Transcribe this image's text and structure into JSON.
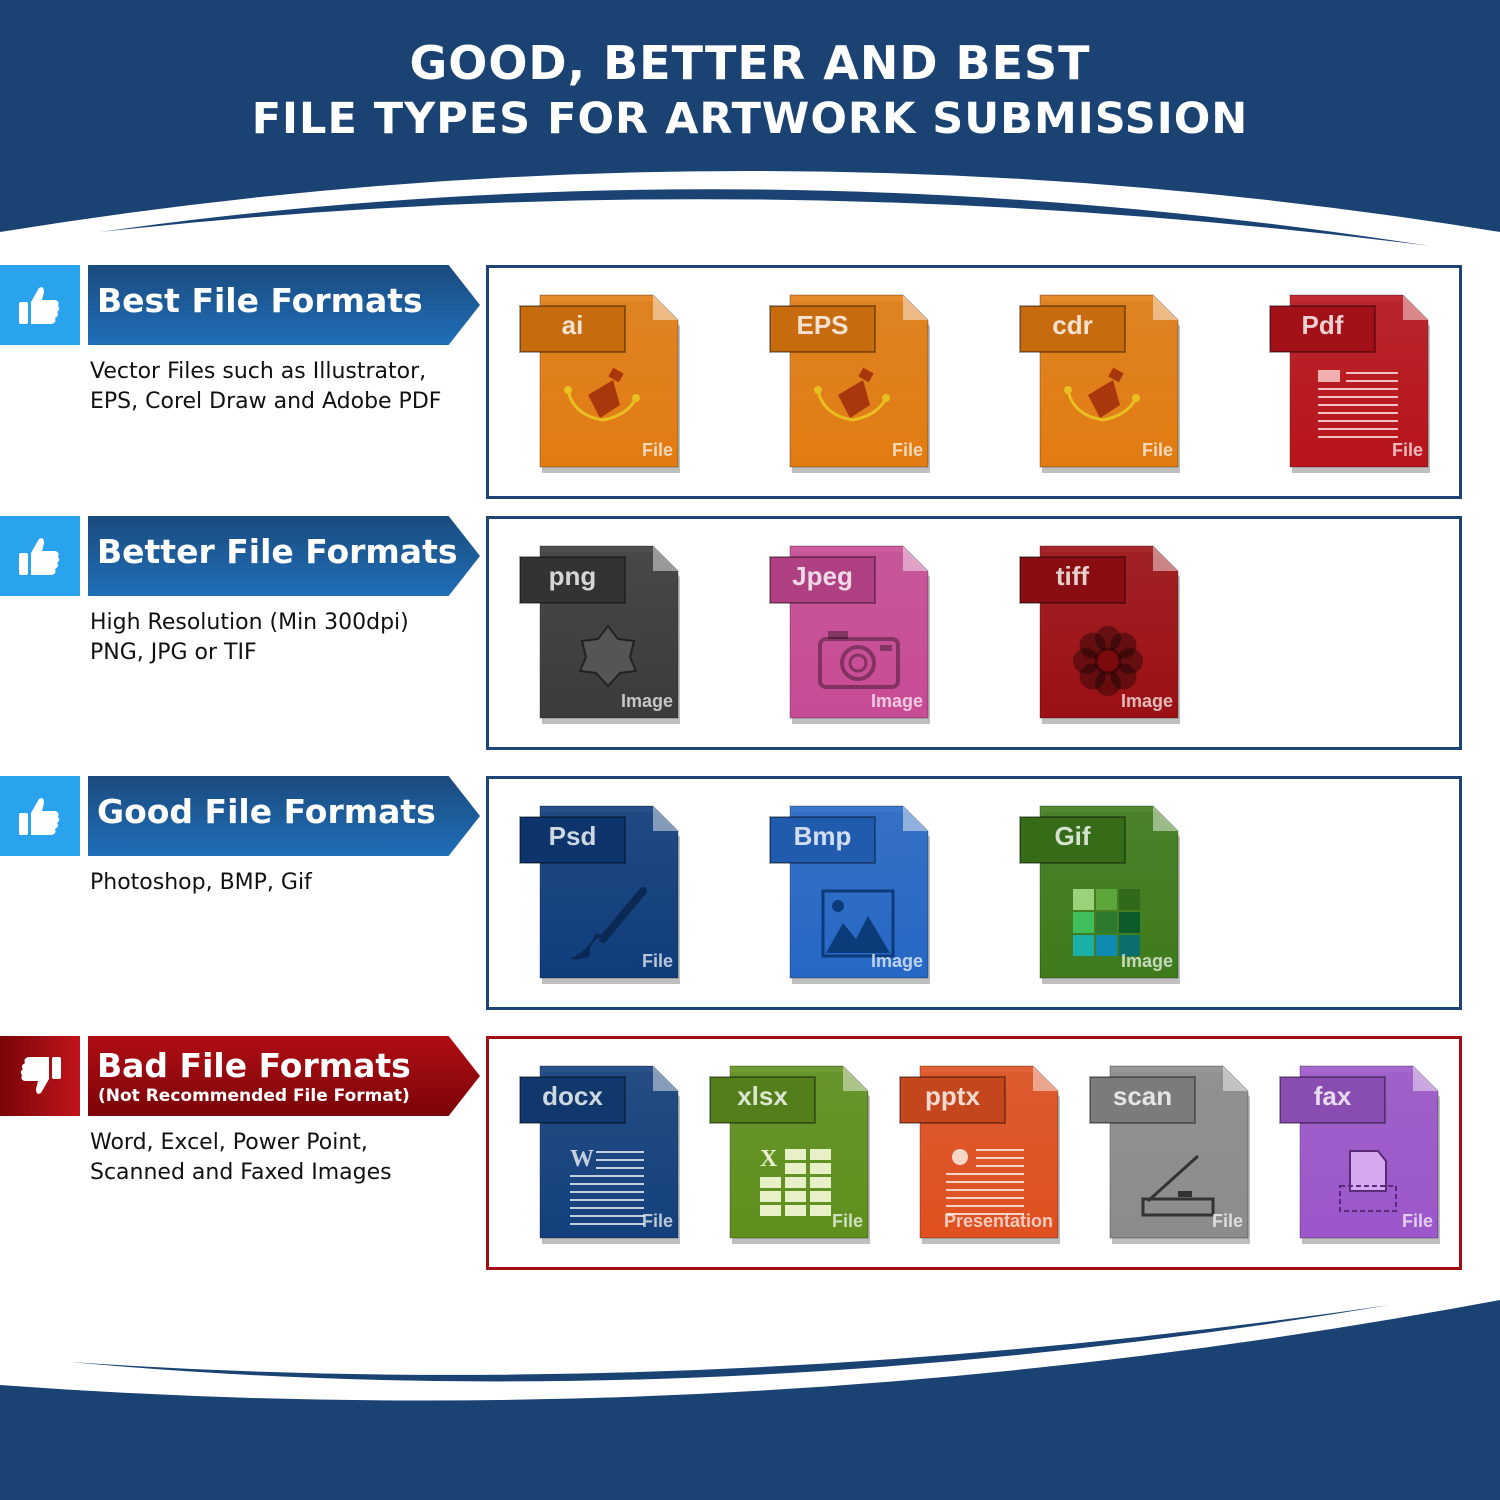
{
  "header": {
    "title_line1": "GOOD, BETTER AND BEST",
    "title_line2": "FILE TYPES FOR ARTWORK SUBMISSION"
  },
  "colors": {
    "navy": "#1a4373",
    "blue_accent": "#2a9be6",
    "bad_red": "#a00d12"
  },
  "sections": [
    {
      "title": "Best File Formats",
      "subtitle": "",
      "thumb_icon": "thumbs-up-icon",
      "description": "Vector Files such as Illustrator,\nEPS, Corel Draw and Adobe PDF",
      "files": [
        {
          "ext": "ai",
          "label": "File",
          "color": "#e27c12",
          "glyph": "pen-tool-icon"
        },
        {
          "ext": "EPS",
          "label": "File",
          "color": "#e27c12",
          "glyph": "pen-tool-icon"
        },
        {
          "ext": "cdr",
          "label": "File",
          "color": "#e27c12",
          "glyph": "pen-tool-icon"
        },
        {
          "ext": "Pdf",
          "label": "File",
          "color": "#b8141b",
          "glyph": "document-lines-icon"
        }
      ]
    },
    {
      "title": "Better File Formats",
      "subtitle": "",
      "thumb_icon": "thumbs-up-icon",
      "description": "High Resolution (Min 300dpi)\nPNG, JPG or TIF",
      "files": [
        {
          "ext": "png",
          "label": "Image",
          "color": "#3b3b3b",
          "glyph": "star-badge-icon"
        },
        {
          "ext": "Jpeg",
          "label": "Image",
          "color": "#c84b95",
          "glyph": "camera-icon"
        },
        {
          "ext": "tiff",
          "label": "Image",
          "color": "#9c1014",
          "glyph": "flower-icon"
        }
      ]
    },
    {
      "title": "Good File Formats",
      "subtitle": "",
      "thumb_icon": "thumbs-up-icon",
      "description": "Photoshop, BMP, Gif",
      "files": [
        {
          "ext": "Psd",
          "label": "File",
          "color": "#0f3d7c",
          "glyph": "brush-icon"
        },
        {
          "ext": "Bmp",
          "label": "Image",
          "color": "#2668c6",
          "glyph": "picture-icon"
        },
        {
          "ext": "Gif",
          "label": "Image",
          "color": "#3e7b1b",
          "glyph": "color-grid-icon"
        }
      ]
    },
    {
      "title": "Bad File Formats",
      "subtitle": "(Not Recommended File Format)",
      "thumb_icon": "thumbs-down-icon",
      "description": "Word, Excel, Power Point,\nScanned and Faxed Images",
      "files": [
        {
          "ext": "docx",
          "label": "File",
          "color": "#13407c",
          "glyph": "word-doc-icon"
        },
        {
          "ext": "xlsx",
          "label": "File",
          "color": "#5f901d",
          "glyph": "spreadsheet-icon"
        },
        {
          "ext": "pptx",
          "label": "Presentation",
          "color": "#e05020",
          "glyph": "presentation-icon"
        },
        {
          "ext": "scan",
          "label": "File",
          "color": "#8c8c8c",
          "glyph": "scanner-icon"
        },
        {
          "ext": "fax",
          "label": "File",
          "color": "#9c57ca",
          "glyph": "fax-icon"
        }
      ]
    }
  ]
}
